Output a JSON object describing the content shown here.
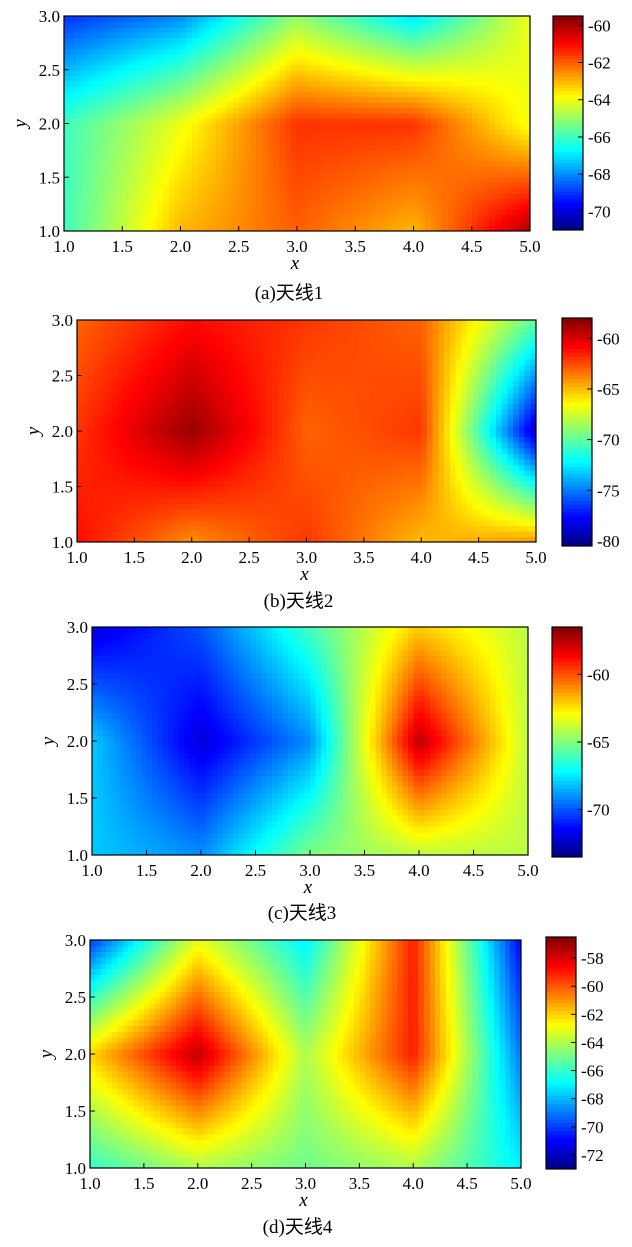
{
  "figure": {
    "chart_data": [
      {
        "type": "heatmap",
        "caption": "(a)天线1",
        "xlabel": "x",
        "ylabel": "y",
        "x": [
          1,
          2,
          3,
          4,
          5
        ],
        "y": [
          1,
          2,
          3
        ],
        "values": [
          [
            -66,
            -63,
            -62,
            -63,
            -60
          ],
          [
            -66,
            -64,
            -61.5,
            -61.5,
            -64
          ],
          [
            -69,
            -68,
            -65,
            -67,
            -64
          ]
        ],
        "xlim": [
          1,
          5
        ],
        "ylim": [
          1,
          3
        ],
        "xticks": [
          "1.0",
          "1.5",
          "2.0",
          "2.5",
          "3.0",
          "3.5",
          "4.0",
          "4.5",
          "5.0"
        ],
        "yticks": [
          "1.0",
          "1.5",
          "2.0",
          "2.5",
          "3.0"
        ],
        "colorbar": {
          "range": [
            -71,
            -59.5
          ],
          "ticks": [
            "-60",
            "-62",
            "-64",
            "-66",
            "-68",
            "-70"
          ],
          "tick_values": [
            -60,
            -62,
            -64,
            -66,
            -68,
            -70
          ]
        },
        "colormap": "jet",
        "grid": false
      },
      {
        "type": "heatmap",
        "caption": "(b)天线2",
        "xlabel": "x",
        "ylabel": "y",
        "x": [
          1,
          2,
          3,
          4,
          5
        ],
        "y": [
          1,
          2,
          3
        ],
        "values": [
          [
            -61,
            -64,
            -62,
            -65,
            -64
          ],
          [
            -62,
            -58.5,
            -63,
            -62,
            -79
          ],
          [
            -63,
            -61,
            -62,
            -63,
            -70
          ]
        ],
        "xlim": [
          1,
          5
        ],
        "ylim": [
          1,
          3
        ],
        "xticks": [
          "1.0",
          "1.5",
          "2.0",
          "2.5",
          "3.0",
          "3.5",
          "4.0",
          "4.5",
          "5.0"
        ],
        "yticks": [
          "1.0",
          "1.5",
          "2.0",
          "2.5",
          "3.0"
        ],
        "colorbar": {
          "range": [
            -80.5,
            -58
          ],
          "ticks": [
            "-60",
            "-65",
            "-70",
            "-75",
            "-80"
          ],
          "tick_values": [
            -60,
            -65,
            -70,
            -75,
            -80
          ]
        },
        "colormap": "jet",
        "grid": false
      },
      {
        "type": "heatmap",
        "caption": "(c)天线3",
        "xlabel": "x",
        "ylabel": "y",
        "x": [
          1,
          2,
          3,
          4,
          5
        ],
        "y": [
          1,
          2,
          3
        ],
        "values": [
          [
            -68,
            -69,
            -65,
            -64,
            -64
          ],
          [
            -68,
            -72,
            -69,
            -57.5,
            -64
          ],
          [
            -72,
            -70,
            -66,
            -62,
            -64
          ]
        ],
        "xlim": [
          1,
          5
        ],
        "ylim": [
          1,
          3
        ],
        "xticks": [
          "1.0",
          "1.5",
          "2.0",
          "2.5",
          "3.0",
          "3.5",
          "4.0",
          "4.5",
          "5.0"
        ],
        "yticks": [
          "1.0",
          "1.5",
          "2.0",
          "2.5",
          "3.0"
        ],
        "colorbar": {
          "range": [
            -73.5,
            -56.5
          ],
          "ticks": [
            "-60",
            "-65",
            "-70"
          ],
          "tick_values": [
            -60,
            -65,
            -70
          ]
        },
        "colormap": "jet",
        "grid": false
      },
      {
        "type": "heatmap",
        "caption": "(d)天线4",
        "xlabel": "x",
        "ylabel": "y",
        "x": [
          1,
          2,
          3,
          4,
          5
        ],
        "y": [
          1,
          2,
          3
        ],
        "values": [
          [
            -66,
            -64,
            -65,
            -64,
            -67
          ],
          [
            -62,
            -57.5,
            -64,
            -59,
            -69
          ],
          [
            -70,
            -63,
            -67,
            -59,
            -71
          ]
        ],
        "xlim": [
          1,
          5
        ],
        "ylim": [
          1,
          3
        ],
        "xticks": [
          "1.0",
          "1.5",
          "2.0",
          "2.5",
          "3.0",
          "3.5",
          "4.0",
          "4.5",
          "5.0"
        ],
        "yticks": [
          "1.0",
          "1.5",
          "2.0",
          "2.5",
          "3.0"
        ],
        "colorbar": {
          "range": [
            -73,
            -56.5
          ],
          "ticks": [
            "-58",
            "-60",
            "-62",
            "-64",
            "-66",
            "-68",
            "-70",
            "-72"
          ],
          "tick_values": [
            -58,
            -60,
            -62,
            -64,
            -66,
            -68,
            -70,
            -72
          ]
        },
        "colormap": "jet",
        "grid": false
      }
    ]
  }
}
